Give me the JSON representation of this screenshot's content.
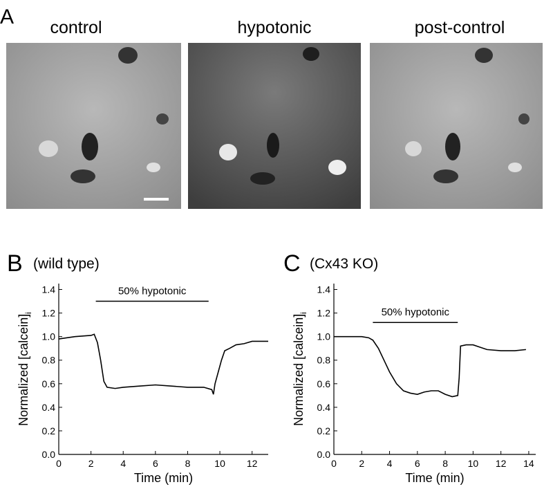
{
  "panel_a": {
    "label": "A",
    "images": [
      "control",
      "hypotonic",
      "post-control"
    ]
  },
  "chart_data": [
    {
      "type": "line",
      "panel_label": "B",
      "title": "(wild type)",
      "xlabel": "Time (min)",
      "ylabel": "Normalized [calcein]",
      "ylabel_sub": "i",
      "annotation": {
        "text": "50% hypotonic",
        "x": [
          2.3,
          9.3
        ],
        "y": 1.3
      },
      "x": [
        0,
        1,
        2,
        2.2,
        2.4,
        2.6,
        2.8,
        3.0,
        3.5,
        4,
        5,
        6,
        7,
        8,
        9,
        9.5,
        9.6,
        9.7,
        9.9,
        10.1,
        10.3,
        10.6,
        11,
        11.5,
        12,
        12.5,
        13
      ],
      "series": [
        {
          "color": "#000000",
          "values": [
            0.98,
            1.0,
            1.01,
            1.02,
            0.95,
            0.8,
            0.62,
            0.57,
            0.56,
            0.57,
            0.58,
            0.59,
            0.58,
            0.57,
            0.57,
            0.55,
            0.51,
            0.6,
            0.7,
            0.8,
            0.88,
            0.9,
            0.93,
            0.94,
            0.96,
            0.96,
            0.96
          ]
        }
      ],
      "xlim": [
        0,
        13
      ],
      "xticks": [
        0,
        2,
        4,
        6,
        8,
        10,
        12
      ],
      "ylim": [
        0,
        1.45
      ],
      "yticks": [
        {
          "value": 0,
          "label": "0.0"
        },
        0.2,
        0.4,
        0.6,
        0.8,
        {
          "value": 1,
          "label": "1.0"
        },
        1.2,
        1.4
      ]
    },
    {
      "type": "line",
      "panel_label": "C",
      "title": "(Cx43 KO)",
      "xlabel": "Time (min)",
      "ylabel": "Normalized [calcein]",
      "ylabel_sub": "i",
      "annotation": {
        "text": "50% hypotonic",
        "x": [
          2.8,
          8.9
        ],
        "y": 1.12
      },
      "x": [
        0,
        1,
        2,
        2.5,
        2.8,
        3.2,
        3.6,
        4,
        4.5,
        5,
        5.5,
        6,
        6.5,
        7,
        7.5,
        8,
        8.5,
        8.9,
        9.0,
        9.1,
        9.5,
        10,
        10.5,
        11,
        12,
        13,
        13.8
      ],
      "series": [
        {
          "color": "#000000",
          "values": [
            1.0,
            1.0,
            1.0,
            0.99,
            0.97,
            0.9,
            0.8,
            0.7,
            0.6,
            0.54,
            0.52,
            0.51,
            0.53,
            0.54,
            0.54,
            0.51,
            0.49,
            0.5,
            0.65,
            0.92,
            0.93,
            0.93,
            0.91,
            0.89,
            0.88,
            0.88,
            0.89
          ]
        }
      ],
      "xlim": [
        0,
        14.5
      ],
      "xticks": [
        0,
        2,
        4,
        6,
        8,
        10,
        12,
        14
      ],
      "ylim": [
        0,
        1.45
      ],
      "yticks": [
        {
          "value": 0,
          "label": "0.0"
        },
        0.2,
        0.4,
        0.6,
        0.8,
        {
          "value": 1,
          "label": "1.0"
        },
        1.2,
        1.4
      ]
    }
  ]
}
